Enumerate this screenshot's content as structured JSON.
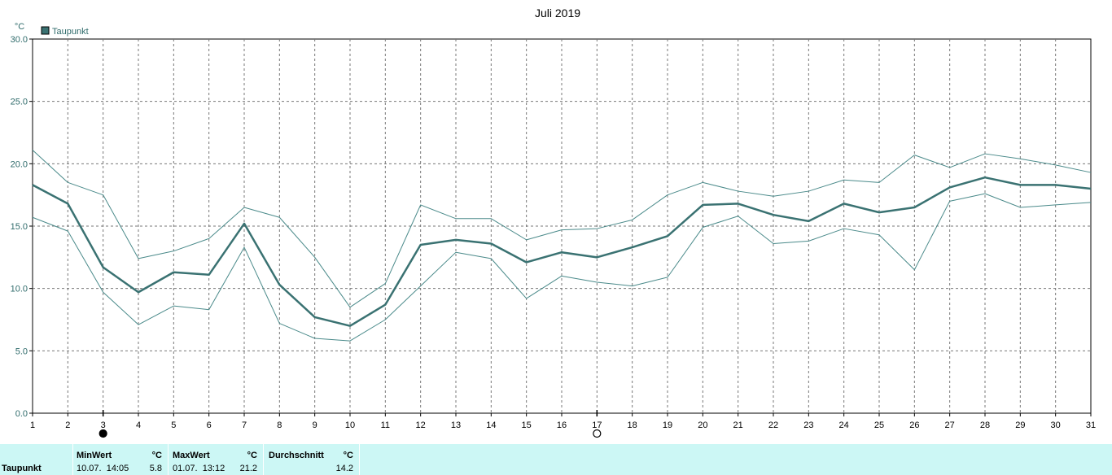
{
  "chart_data": {
    "type": "line",
    "title": "Juli 2019",
    "ylabel": "°C",
    "ylim": [
      0,
      30
    ],
    "xlim": [
      1,
      31
    ],
    "grid": true,
    "legend_position": "top-left",
    "y_ticks": [
      "0.0",
      "5.0",
      "10.0",
      "15.0",
      "20.0",
      "25.0",
      "30.0"
    ],
    "categories": [
      "1",
      "2",
      "3",
      "4",
      "5",
      "6",
      "7",
      "8",
      "9",
      "10",
      "11",
      "12",
      "13",
      "14",
      "15",
      "16",
      "17",
      "18",
      "19",
      "20",
      "21",
      "22",
      "23",
      "24",
      "25",
      "26",
      "27",
      "28",
      "29",
      "30",
      "31"
    ],
    "series": [
      {
        "name": "Taupunkt",
        "color": "#3a7272",
        "values": [
          18.3,
          16.8,
          11.7,
          9.7,
          11.3,
          11.1,
          15.2,
          10.3,
          7.7,
          7.0,
          8.7,
          13.5,
          13.9,
          13.6,
          12.1,
          12.9,
          12.5,
          13.3,
          14.2,
          16.7,
          16.8,
          15.9,
          15.4,
          16.8,
          16.1,
          16.5,
          18.1,
          18.9,
          18.3,
          18.3,
          18.0
        ]
      },
      {
        "color": "#4a8a8a",
        "values": [
          21.1,
          18.5,
          17.5,
          12.4,
          13.0,
          14.0,
          16.5,
          15.7,
          12.5,
          8.5,
          10.4,
          16.7,
          15.6,
          15.6,
          13.9,
          14.7,
          14.8,
          15.5,
          17.5,
          18.5,
          17.8,
          17.4,
          17.8,
          18.7,
          18.5,
          20.7,
          19.7,
          20.8,
          20.4,
          19.9,
          19.3
        ]
      },
      {
        "color": "#4a8a8a",
        "values": [
          15.7,
          14.6,
          9.7,
          7.1,
          8.6,
          8.3,
          13.3,
          7.2,
          6.0,
          5.8,
          7.5,
          10.2,
          12.9,
          12.4,
          9.2,
          11.0,
          10.5,
          10.2,
          10.9,
          14.9,
          15.8,
          13.6,
          13.8,
          14.8,
          14.3,
          11.5,
          17.0,
          17.6,
          16.5,
          16.7,
          16.9
        ]
      }
    ],
    "moon_phases": [
      {
        "day": 3,
        "phase": "new-moon"
      },
      {
        "day": 17,
        "phase": "full-moon"
      }
    ]
  },
  "footer": {
    "row_label": "Taupunkt",
    "columns": [
      {
        "header": "MinWert",
        "unit": "°C",
        "time": "10.07.  14:05",
        "value": "5.8"
      },
      {
        "header": "MaxWert",
        "unit": "°C",
        "time": "01.07.  13:12",
        "value": "21.2"
      },
      {
        "header": "Durchschnitt",
        "unit": "°C",
        "time": "",
        "value": "14.2"
      }
    ]
  }
}
